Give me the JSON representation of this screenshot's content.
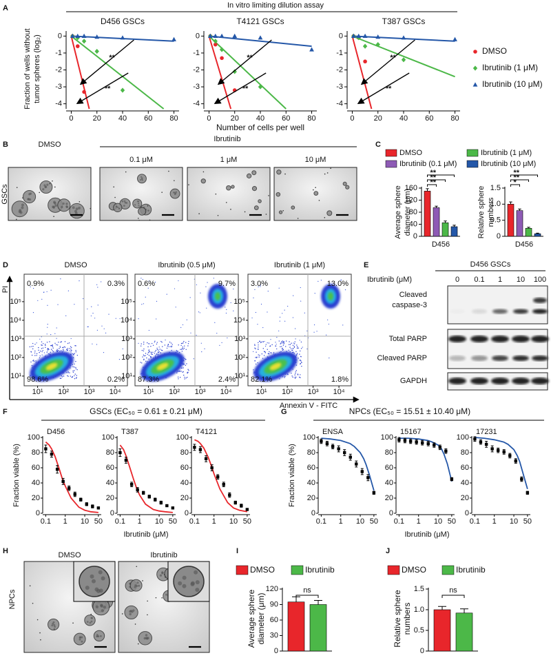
{
  "a": {
    "label": "A",
    "title": "In vitro limiting dilution assay",
    "y_label": [
      "Fraction of wells without",
      "tumor spheres (log₂)"
    ],
    "x_label": "Number of cells per well",
    "xlim": [
      -4,
      84
    ],
    "ylim": [
      -4.3,
      0.3
    ],
    "xticks": [
      0,
      20,
      40,
      60,
      80
    ],
    "yticks": [
      0,
      -1,
      -2,
      -3,
      -4
    ],
    "annotation": "**",
    "legend": [
      {
        "name": "DMSO",
        "color": "#e8262b",
        "marker": "circle"
      },
      {
        "name": "Ibrutinib (1 μM)",
        "color": "#4cb848",
        "marker": "diamond"
      },
      {
        "name": "Ibrutinib (10 μM)",
        "color": "#2457a8",
        "marker": "triangle"
      }
    ],
    "plots": [
      {
        "title": "D456  GSCs",
        "series": [
          {
            "x": [
              1,
              5,
              10
            ],
            "values": [
              0,
              -0.6,
              -3.3
            ],
            "fit_x": [
              0,
              14
            ],
            "fit_y": [
              0,
              -4.3
            ]
          },
          {
            "x": [
              1,
              5,
              10,
              20,
              40
            ],
            "values": [
              0,
              -0.1,
              -0.3,
              -0.9,
              -3.2
            ],
            "fit_x": [
              0,
              72
            ],
            "fit_y": [
              0,
              -4.3
            ]
          },
          {
            "x": [
              1,
              5,
              10,
              20,
              40,
              80
            ],
            "values": [
              0,
              0,
              0,
              -0.05,
              -0.1,
              -0.2
            ],
            "fit_x": [
              0,
              80
            ],
            "fit_y": [
              0,
              -0.3
            ]
          }
        ]
      },
      {
        "title": "T4121  GSCs",
        "series": [
          {
            "x": [
              1,
              5,
              10,
              20
            ],
            "values": [
              0,
              -0.5,
              -1.3,
              -3.2
            ],
            "fit_x": [
              0,
              17
            ],
            "fit_y": [
              0,
              -4.3
            ]
          },
          {
            "x": [
              1,
              5,
              10,
              20,
              40
            ],
            "values": [
              0,
              -0.3,
              -0.8,
              -2.1,
              -3.0
            ],
            "fit_x": [
              0,
              60
            ],
            "fit_y": [
              0,
              -4.3
            ]
          },
          {
            "x": [
              1,
              5,
              10,
              20,
              40,
              80
            ],
            "values": [
              0,
              0,
              0,
              0,
              -0.1,
              -0.8
            ],
            "fit_x": [
              0,
              80
            ],
            "fit_y": [
              0,
              -0.6
            ]
          }
        ]
      },
      {
        "title": "T387  GSCs",
        "series": [
          {
            "x": [
              1,
              5,
              10
            ],
            "values": [
              0,
              -0.1,
              -1.5
            ],
            "fit_x": [
              0,
              15
            ],
            "fit_y": [
              0,
              -4.3
            ]
          },
          {
            "x": [
              1,
              5,
              10,
              20,
              40
            ],
            "values": [
              0,
              -0.1,
              -0.6,
              -0.5,
              -1.4
            ],
            "fit_x": [
              0,
              80
            ],
            "fit_y": [
              0,
              -2.4
            ]
          },
          {
            "x": [
              1,
              5,
              10,
              20,
              40,
              80
            ],
            "values": [
              0,
              0,
              0,
              -0.05,
              -0.1,
              -0.2
            ],
            "fit_x": [
              0,
              80
            ],
            "fit_y": [
              0,
              -0.3
            ]
          }
        ]
      }
    ]
  },
  "b": {
    "label": "B",
    "title": "Ibrutinib",
    "columns": [
      "DMSO",
      "0.1 μM",
      "1 μM",
      "10 μM"
    ],
    "row_label": "GSCs"
  },
  "c": {
    "label": "C",
    "category": "D456",
    "legend": [
      {
        "name": "DMSO",
        "color": "#e8262b"
      },
      {
        "name": "Ibrutinib (0.1 μM)",
        "color": "#8e5bb5"
      },
      {
        "name": "Ibrutinib (1 μM)",
        "color": "#4cb848"
      },
      {
        "name": "Ibrutinib (10 μM)",
        "color": "#2457a8"
      }
    ],
    "charts": [
      {
        "y_label": [
          "Average sphere",
          "diameter (μm)"
        ],
        "ylim": [
          0,
          160
        ],
        "yticks": [
          0,
          40,
          80,
          120,
          160
        ],
        "values": [
          150,
          95,
          45,
          32
        ],
        "errors": [
          8,
          5,
          6,
          5
        ],
        "significance": [
          "**",
          "**",
          "**"
        ]
      },
      {
        "y_label": [
          "Relative sphere",
          "numbers"
        ],
        "ylim": [
          0,
          1.5
        ],
        "yticks": [
          0,
          0.5,
          {
            "value": 1,
            "label": "1.0"
          },
          1.5
        ],
        "values": [
          1.0,
          0.8,
          0.25,
          0.08
        ],
        "errors": [
          0.07,
          0.05,
          0.03,
          0.02
        ],
        "significance": [
          "*",
          "**",
          "**"
        ]
      }
    ]
  },
  "d": {
    "label": "D",
    "y_axis": "PI",
    "x_axis": "Annexin V - FITC",
    "xlim": [
      3,
      30000
    ],
    "ylim": [
      3,
      3000000
    ],
    "xticks": [
      {
        "value": 10,
        "label": "10¹"
      },
      {
        "value": 100,
        "label": "10²"
      },
      {
        "value": 1000,
        "label": "10³"
      },
      {
        "value": 10000,
        "label": "10⁴"
      }
    ],
    "yticks": [
      {
        "value": 10,
        "label": "10¹"
      },
      {
        "value": 100,
        "label": "10²"
      },
      {
        "value": 1000,
        "label": "10³"
      },
      {
        "value": 10000,
        "label": "10⁴"
      },
      {
        "value": 100000,
        "label": "10⁵"
      }
    ],
    "plots": [
      {
        "title": "DMSO",
        "quadrants": [
          "0.9%",
          "0.3%",
          "98.6%",
          "0.2%"
        ]
      },
      {
        "title": "Ibrutinib (0.5 μM)",
        "quadrants": [
          "0.6%",
          "9.7%",
          "87.3%",
          "2.4%"
        ]
      },
      {
        "title": "Ibrutinib (1 μM)",
        "quadrants": [
          "3.0%",
          "13.0%",
          "82.1%",
          "1.8%"
        ]
      }
    ]
  },
  "e": {
    "label": "E",
    "title": "D456 GSCs",
    "dose_label": "Ibrutinib (μM)",
    "doses": [
      0,
      0.1,
      1,
      10,
      100
    ],
    "rows": [
      [
        "Cleaved",
        "caspase-3"
      ],
      [
        "Total PARP"
      ],
      [
        "Cleaved PARP"
      ],
      [
        "GAPDH"
      ]
    ]
  },
  "viability": {
    "y_label": "Fraction viable (%)",
    "x_label": "Ibrutinib (μM)",
    "xlim": [
      0.07,
      70
    ],
    "ylim": [
      0,
      100
    ],
    "xticks": [
      0.1,
      1,
      10,
      50
    ],
    "yticks": [
      0,
      20,
      40,
      60,
      80,
      100
    ],
    "x": [
      0.1,
      0.2,
      0.39,
      0.78,
      1.56,
      3.13,
      6.25,
      12.5,
      25,
      50
    ]
  },
  "f": {
    "label": "F",
    "title": "GSCs (EC₅₀ = 0.61 ± 0.21 μM)",
    "color": "#e8262b",
    "plots": [
      {
        "title": "D456",
        "values": [
          85,
          78,
          58,
          42,
          33,
          25,
          18,
          12,
          9,
          7
        ],
        "errors": [
          5,
          4,
          5,
          4,
          3,
          3,
          2,
          2,
          2,
          1
        ],
        "curve_x": [
          0.1,
          0.15,
          0.2,
          0.3,
          0.5,
          0.7,
          1,
          2,
          5,
          10,
          20,
          50
        ],
        "curve_y": [
          94,
          90,
          85,
          75,
          58,
          46,
          36,
          20,
          8,
          4,
          2,
          1
        ]
      },
      {
        "title": "T387",
        "values": [
          80,
          70,
          38,
          31,
          27,
          22,
          18,
          14,
          10,
          7
        ],
        "errors": [
          5,
          4,
          3,
          3,
          2,
          2,
          2,
          2,
          1,
          1
        ],
        "curve_x": [
          0.1,
          0.15,
          0.2,
          0.3,
          0.5,
          0.7,
          1,
          2,
          5,
          10,
          20,
          50
        ],
        "curve_y": [
          90,
          84,
          76,
          62,
          44,
          33,
          24,
          12,
          5,
          3,
          2,
          1
        ]
      },
      {
        "title": "T4121",
        "values": [
          87,
          84,
          72,
          60,
          48,
          38,
          24,
          14,
          10,
          5
        ],
        "errors": [
          4,
          4,
          4,
          4,
          3,
          3,
          3,
          2,
          2,
          1
        ],
        "curve_x": [
          0.1,
          0.15,
          0.2,
          0.3,
          0.5,
          0.7,
          1,
          2,
          5,
          10,
          20,
          50
        ],
        "curve_y": [
          97,
          95,
          92,
          86,
          74,
          64,
          52,
          32,
          14,
          7,
          4,
          2
        ]
      }
    ]
  },
  "g": {
    "label": "G",
    "title": "NPCs (EC₅₀ = 15.51 ± 10.40 μM)",
    "color": "#2457a8",
    "plots": [
      {
        "title": "ENSA",
        "values": [
          95,
          92,
          88,
          85,
          80,
          74,
          65,
          55,
          47,
          27
        ],
        "errors": [
          3,
          3,
          3,
          4,
          4,
          4,
          4,
          4,
          4,
          2
        ],
        "curve_x": [
          0.1,
          0.3,
          1,
          3,
          5,
          10,
          15,
          20,
          30,
          50
        ],
        "curve_y": [
          99,
          98,
          96,
          92,
          88,
          80,
          72,
          64,
          50,
          30
        ]
      },
      {
        "title": "15167",
        "values": [
          97,
          96,
          95,
          94,
          93,
          92,
          90,
          87,
          82,
          45
        ],
        "errors": [
          3,
          3,
          3,
          3,
          3,
          3,
          3,
          3,
          3,
          2
        ],
        "curve_x": [
          0.1,
          0.3,
          1,
          3,
          5,
          10,
          15,
          20,
          30,
          50
        ],
        "curve_y": [
          99,
          99,
          98,
          96,
          94,
          90,
          85,
          78,
          65,
          42
        ]
      },
      {
        "title": "17231",
        "values": [
          98,
          94,
          91,
          85,
          83,
          81,
          76,
          69,
          45,
          27
        ],
        "errors": [
          3,
          3,
          4,
          4,
          3,
          3,
          3,
          3,
          3,
          2
        ],
        "curve_x": [
          0.1,
          0.3,
          1,
          3,
          5,
          10,
          15,
          20,
          30,
          50
        ],
        "curve_y": [
          100,
          99,
          97,
          94,
          91,
          84,
          76,
          68,
          52,
          32
        ]
      }
    ]
  },
  "h": {
    "label": "H",
    "columns": [
      "DMSO",
      "Ibrutinib"
    ],
    "row_label": "NPCs"
  },
  "i": {
    "label": "I",
    "legend": [
      {
        "name": "DMSO",
        "color": "#e8262b"
      },
      {
        "name": "Ibrutinib",
        "color": "#4cb848"
      }
    ],
    "y_label": [
      "Average sphere",
      "diameter (μm)"
    ],
    "ylim": [
      0,
      120
    ],
    "yticks": [
      0,
      30,
      60,
      90,
      120
    ],
    "values": [
      95,
      90
    ],
    "errors": [
      10,
      8
    ],
    "annotation": "ns"
  },
  "j": {
    "label": "J",
    "legend": [
      {
        "name": "DMSO",
        "color": "#e8262b"
      },
      {
        "name": "Ibrutinib",
        "color": "#4cb848"
      }
    ],
    "y_label": [
      "Relative sphere",
      "numbers"
    ],
    "ylim": [
      0,
      1.5
    ],
    "yticks": [
      0,
      0.5,
      {
        "value": 1,
        "label": "1.0"
      },
      1.5
    ],
    "values": [
      1.0,
      0.92
    ],
    "errors": [
      0.08,
      0.1
    ],
    "annotation": "ns"
  }
}
